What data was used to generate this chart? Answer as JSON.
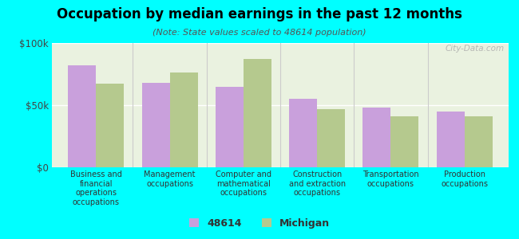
{
  "title": "Occupation by median earnings in the past 12 months",
  "subtitle": "(Note: State values scaled to 48614 population)",
  "background_color": "#00FFFF",
  "plot_bg_color": "#eaf2e0",
  "categories": [
    "Business and\nfinancial\noperations\noccupations",
    "Management\noccupations",
    "Computer and\nmathematical\noccupations",
    "Construction\nand extraction\noccupations",
    "Transportation\noccupations",
    "Production\noccupations"
  ],
  "values_48614": [
    82000,
    68000,
    65000,
    55000,
    48000,
    45000
  ],
  "values_michigan": [
    67000,
    76000,
    87000,
    47000,
    41000,
    41000
  ],
  "color_48614": "#c9a0dc",
  "color_michigan": "#b5c98e",
  "ylim": [
    0,
    100000
  ],
  "yticks": [
    0,
    50000,
    100000
  ],
  "ytick_labels": [
    "$0",
    "$50k",
    "$100k"
  ],
  "legend_labels": [
    "48614",
    "Michigan"
  ],
  "watermark": "City-Data.com"
}
